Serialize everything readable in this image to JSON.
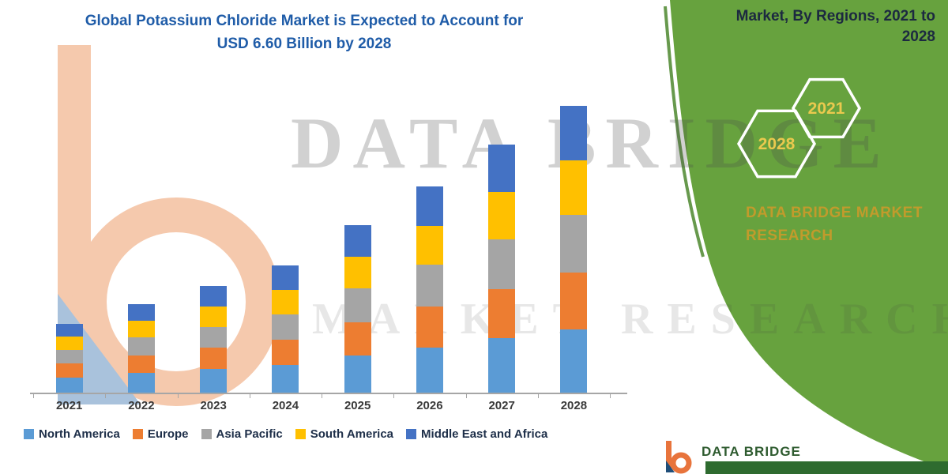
{
  "title": {
    "line1": "Global Potassium Chloride Market is Expected to Account for",
    "line2": "USD 6.60 Billion by 2028"
  },
  "side_panel": {
    "heading": "Market, By Regions, 2021 to 2028",
    "hexagon_labels": [
      "2028",
      "2021"
    ],
    "brand_line1": "DATA BRIDGE MARKET",
    "brand_line2": "RESEARCH",
    "green": "#67A23E",
    "gold": "#C19B2C"
  },
  "watermark": {
    "line1": "DATA BRIDGE",
    "line2": "MARKET RESEARCH"
  },
  "footer": {
    "brand": "DATA BRIDGE"
  },
  "chart_data": {
    "type": "bar",
    "stacked": true,
    "title": "Global Potassium Chloride Market is Expected to Account for USD 6.60 Billion by 2028",
    "unit": "USD Billion",
    "categories": [
      "2021",
      "2022",
      "2023",
      "2024",
      "2025",
      "2026",
      "2027",
      "2028"
    ],
    "series": [
      {
        "name": "North America",
        "color": "#5B9BD5",
        "values": [
          0.35,
          0.45,
          0.54,
          0.64,
          0.85,
          1.04,
          1.25,
          1.45
        ]
      },
      {
        "name": "Europe",
        "color": "#ED7D31",
        "values": [
          0.32,
          0.41,
          0.49,
          0.58,
          0.77,
          0.95,
          1.14,
          1.32
        ]
      },
      {
        "name": "Asia Pacific",
        "color": "#A5A5A5",
        "values": [
          0.32,
          0.41,
          0.49,
          0.58,
          0.77,
          0.95,
          1.14,
          1.32
        ]
      },
      {
        "name": "South America",
        "color": "#FFC000",
        "values": [
          0.3,
          0.39,
          0.47,
          0.56,
          0.74,
          0.9,
          1.09,
          1.26
        ]
      },
      {
        "name": "Middle East and Africa",
        "color": "#4472C4",
        "values": [
          0.3,
          0.38,
          0.47,
          0.56,
          0.73,
          0.9,
          1.08,
          1.25
        ]
      }
    ],
    "totals": [
      1.59,
      2.04,
      2.46,
      2.92,
      3.86,
      4.74,
      5.7,
      6.6
    ],
    "xlabel": "",
    "ylabel": "",
    "ylim": [
      0,
      7
    ],
    "grid": false,
    "legend_position": "bottom"
  }
}
